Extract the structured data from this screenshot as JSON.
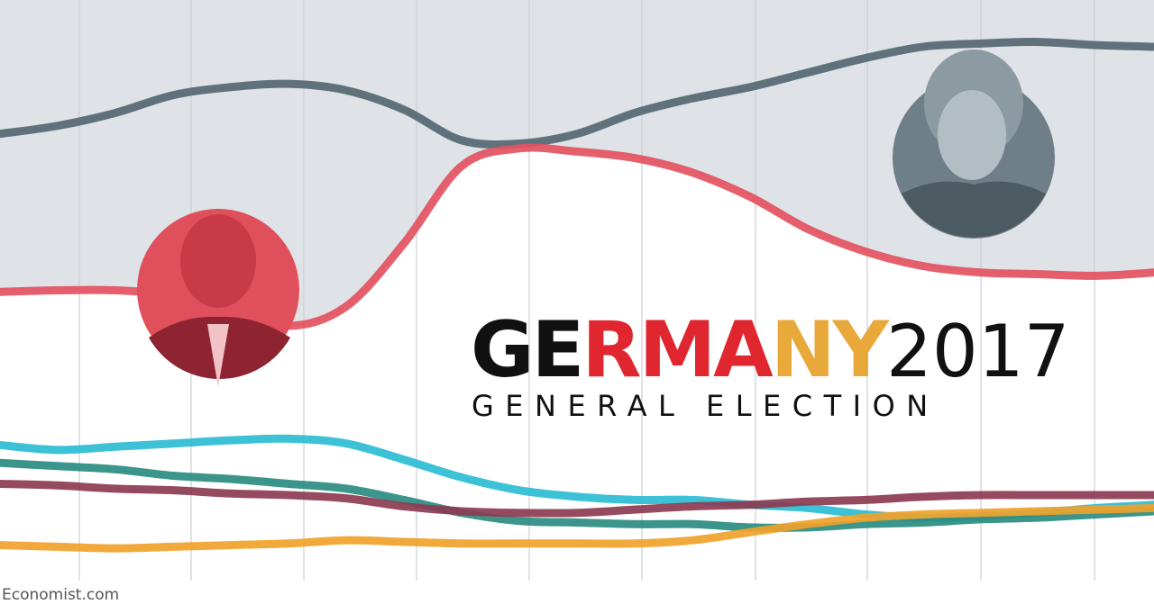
{
  "chart_data": {
    "type": "line",
    "title_parts": [
      "GE",
      "RMA",
      "NY",
      "2017"
    ],
    "title_colors": [
      "#111111",
      "#e0262f",
      "#e9a93a",
      "#111111"
    ],
    "subtitle": "GENERAL ELECTION",
    "source": "Economist.com",
    "ylim": [
      4,
      40
    ],
    "series": [
      {
        "color": "#546873",
        "values": [
          31.7,
          32.2,
          33.0,
          34.1,
          34.6,
          34.8,
          34.4,
          33.2,
          31.3,
          31.1,
          31.7,
          33.0,
          33.9,
          34.6,
          35.5,
          36.4,
          37.1,
          37.3,
          37.4,
          37.2,
          37.1
        ]
      },
      {
        "color": "#e3515f",
        "values": [
          21.9,
          22.0,
          22.0,
          21.7,
          21.0,
          19.8,
          21.0,
          24.9,
          29.7,
          30.8,
          30.6,
          30.2,
          29.3,
          27.8,
          25.8,
          24.4,
          23.5,
          23.1,
          23.0,
          22.9,
          23.1
        ]
      },
      {
        "color": "#2bbcd4",
        "values": [
          12.4,
          12.1,
          12.3,
          12.5,
          12.7,
          12.8,
          12.5,
          11.5,
          10.4,
          9.6,
          9.2,
          9.0,
          9.0,
          8.7,
          8.5,
          8.1,
          7.9,
          8.0,
          8.2,
          8.5,
          8.7
        ]
      },
      {
        "color": "#2a8c80",
        "values": [
          11.3,
          11.1,
          10.9,
          10.5,
          10.3,
          10.0,
          9.7,
          9.0,
          8.2,
          7.7,
          7.6,
          7.5,
          7.5,
          7.3,
          7.3,
          7.5,
          7.6,
          7.8,
          7.9,
          8.1,
          8.3
        ]
      },
      {
        "color": "#8c3b52",
        "values": [
          10.0,
          9.9,
          9.7,
          9.6,
          9.4,
          9.3,
          9.1,
          8.6,
          8.3,
          8.2,
          8.2,
          8.4,
          8.6,
          8.7,
          8.9,
          9.0,
          9.2,
          9.3,
          9.3,
          9.3,
          9.3
        ]
      },
      {
        "color": "#f0a22a",
        "values": [
          6.2,
          6.1,
          6.0,
          6.1,
          6.2,
          6.3,
          6.5,
          6.4,
          6.3,
          6.3,
          6.3,
          6.3,
          6.5,
          7.0,
          7.5,
          7.9,
          8.1,
          8.2,
          8.3,
          8.4,
          8.5
        ]
      }
    ]
  }
}
